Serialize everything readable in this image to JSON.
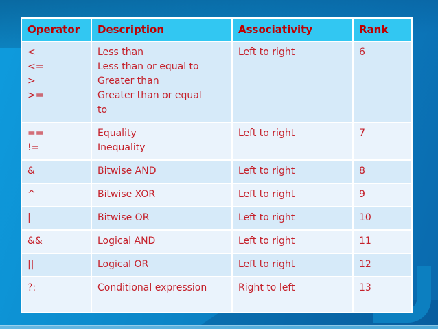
{
  "table": {
    "columns": [
      {
        "label": "Operator"
      },
      {
        "label": "Description"
      },
      {
        "label": "Associativity"
      },
      {
        "label": "Rank"
      }
    ],
    "rows": [
      {
        "operator": "<\n<=\n>\n>=",
        "description": "Less than\nLess than or equal to\nGreater than\nGreater than or equal\nto",
        "associativity": "Left to right",
        "rank": "6"
      },
      {
        "operator": "==\n!=",
        "description": "Equality\nInequality",
        "associativity": "Left to right",
        "rank": "7"
      },
      {
        "operator": "&",
        "description": "Bitwise AND",
        "associativity": "Left to right",
        "rank": "8"
      },
      {
        "operator": "^",
        "description": "Bitwise XOR",
        "associativity": "Left to right",
        "rank": "9"
      },
      {
        "operator": "|",
        "description": "Bitwise OR",
        "associativity": "Left to right",
        "rank": "10"
      },
      {
        "operator": "&&",
        "description": "Logical AND",
        "associativity": "Left to right",
        "rank": "11"
      },
      {
        "operator": "||",
        "description": "Logical OR",
        "associativity": "Left to right",
        "rank": "12"
      },
      {
        "operator": "?:",
        "description": "Conditional expression",
        "associativity": "Right to left",
        "rank": "13"
      }
    ]
  },
  "colors": {
    "bg-light": "#0E9CDE",
    "bg-mid": "#0C86C8",
    "bg-dark": "#0A68AC",
    "header-bg": "#32C7F2",
    "row-odd": "#D6EAF9",
    "row-even": "#EAF3FC",
    "header-text": "#C00000",
    "body-text": "#C5212B",
    "grid": "#FFFFFF",
    "deco-band": "#0C7FC0",
    "bottom-strip": "#55AEDC"
  }
}
